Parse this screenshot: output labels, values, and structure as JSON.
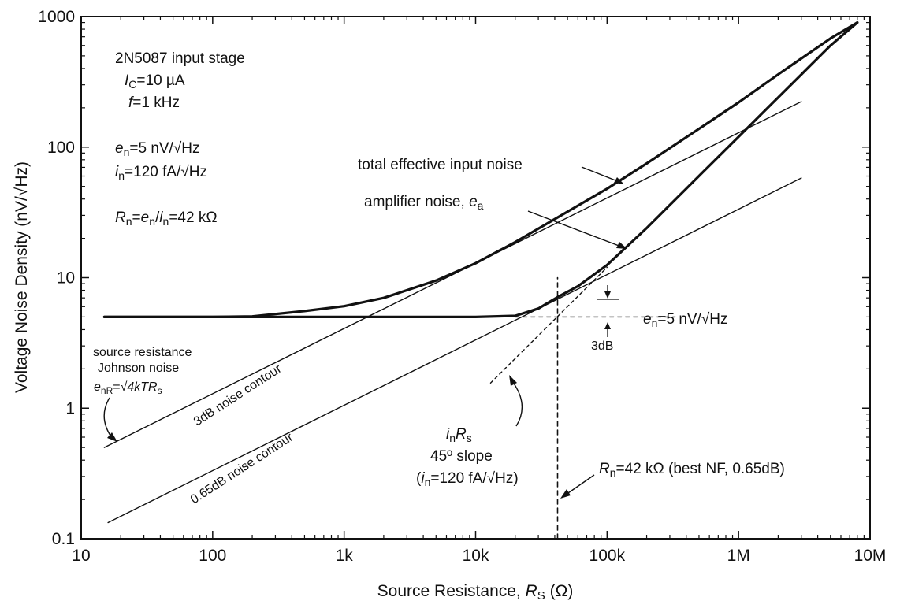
{
  "chart_data": {
    "type": "line",
    "xscale": "log",
    "yscale": "log",
    "xlim": [
      10,
      10000000
    ],
    "ylim": [
      0.1,
      1000
    ],
    "grid": false,
    "legend": "none",
    "xlabel_prefix": "Source Resistance, ",
    "xlabel_var": "R",
    "xlabel_sub": "S",
    "xlabel_suffix": " (Ω)",
    "ylabel": "Voltage Noise Density  (nV/√Hz)",
    "x_ticks": [
      {
        "value": 10,
        "label": "10"
      },
      {
        "value": 100,
        "label": "100"
      },
      {
        "value": 1000,
        "label": "1k"
      },
      {
        "value": 10000,
        "label": "10k"
      },
      {
        "value": 100000,
        "label": "100k"
      },
      {
        "value": 1000000,
        "label": "1M"
      },
      {
        "value": 10000000,
        "label": "10M"
      }
    ],
    "y_ticks": [
      {
        "value": 0.1,
        "label": "0.1"
      },
      {
        "value": 1,
        "label": "1"
      },
      {
        "value": 10,
        "label": "10"
      },
      {
        "value": 100,
        "label": "100"
      },
      {
        "value": 1000,
        "label": "1000"
      }
    ],
    "series": [
      {
        "key": "total",
        "x": [
          15,
          100,
          200,
          500,
          1000,
          2000,
          5000,
          10000,
          20000,
          50000,
          100000,
          200000,
          500000,
          1000000,
          2000000,
          5000000,
          8000000
        ],
        "y": [
          5.0,
          5.0,
          5.05,
          5.55,
          6.05,
          7.0,
          9.5,
          12.9,
          18.7,
          32,
          48,
          75,
          138,
          220,
          360,
          680,
          900
        ]
      },
      {
        "key": "amplifier",
        "x": [
          15,
          1000,
          10000,
          20000,
          30000,
          42000,
          60000,
          100000,
          200000,
          500000,
          1000000,
          2000000,
          5000000,
          8000000
        ],
        "y": [
          5.0,
          5.0,
          5.0,
          5.1,
          5.8,
          7.1,
          8.6,
          12.5,
          24,
          60,
          120,
          240,
          600,
          900
        ]
      },
      {
        "key": "johnson",
        "x": [
          15,
          3000000
        ],
        "y": [
          0.5,
          223
        ]
      },
      {
        "key": "contour_065",
        "x": [
          16,
          3000000
        ],
        "y": [
          0.133,
          58
        ]
      },
      {
        "key": "inrs",
        "x": [
          13000,
          100000
        ],
        "y": [
          1.56,
          12.0
        ]
      },
      {
        "key": "en_level",
        "x": [
          20000,
          330000
        ],
        "y": [
          5.0,
          5.0
        ]
      },
      {
        "key": "rn_vertical",
        "x": [
          42000,
          42000
        ],
        "y": [
          0.1,
          10
        ]
      }
    ],
    "annotations": {
      "stage_title": "2N5087 input stage",
      "ic_var": "I",
      "ic_sub": "C",
      "ic_val": "=10 µA",
      "f_var": "f",
      "f_val": "=1 kHz",
      "en_var": "e",
      "en_sub": "n",
      "en_val": "=5 nV/√Hz",
      "in_var": "i",
      "in_sub": "n",
      "in_val": "=120 fA/√Hz",
      "rn_var": "R",
      "rn_sub": "n",
      "rn_mid1": "=",
      "rn_en_var": "e",
      "rn_en_sub": "n",
      "rn_slash": "/",
      "rn_in_var": "i",
      "rn_in_sub": "n",
      "rn_val": "=42 kΩ",
      "total_label": "total effective input noise",
      "amp_label": "amplifier noise, ",
      "amp_var": "e",
      "amp_sub": "a",
      "en_line_var": "e",
      "en_line_sub": "n",
      "en_line_val": "=5 nV/√Hz",
      "db3_label": "3dB",
      "source_res_line1": "source resistance",
      "source_res_line2": "Johnson noise",
      "enr_var": "e",
      "enr_sub": "nR",
      "enr_eq": "=",
      "enr_sqrt": "√4kTR",
      "enr_sqrt_sub": "s",
      "contour3_label": "3dB noise contour",
      "contour065_label": "0.65dB noise contour",
      "inrs_var1": "i",
      "inrs_sub1": "n",
      "inrs_var2": "R",
      "inrs_sub2": "s",
      "slope_label": "45º slope",
      "slope_in_open": "(",
      "slope_in_var": "i",
      "slope_in_sub": "n",
      "slope_in_val": "=120 fA/√Hz)",
      "rn_best_var": "R",
      "rn_best_sub": "n",
      "rn_best_val": "=42 kΩ (best NF, 0.65dB)"
    }
  }
}
